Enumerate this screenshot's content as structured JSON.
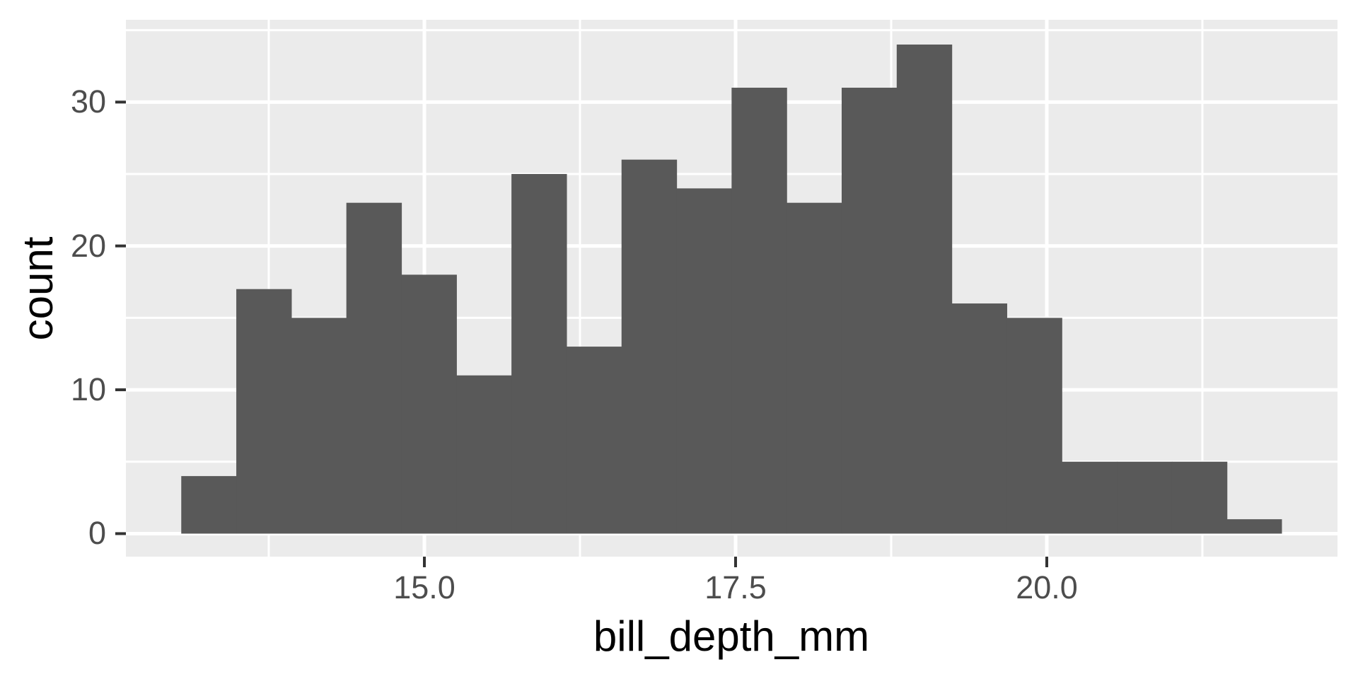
{
  "chart_data": {
    "type": "bar",
    "subtype": "histogram",
    "title": "",
    "xlabel": "bill_depth_mm",
    "ylabel": "count",
    "bin_start": 13.047,
    "bin_width": 0.4421,
    "counts": [
      4,
      17,
      15,
      23,
      18,
      11,
      25,
      13,
      26,
      24,
      31,
      23,
      31,
      34,
      16,
      15,
      5,
      5,
      5,
      1
    ],
    "total_n": 342,
    "x_ticks": [
      15.0,
      17.5,
      20.0
    ],
    "x_tick_labels": [
      "15.0",
      "17.5",
      "20.0"
    ],
    "x_minor_ticks": [
      13.75,
      16.25,
      18.75,
      21.25
    ],
    "y_ticks": [
      0,
      10,
      20,
      30
    ],
    "y_tick_labels": [
      "0",
      "10",
      "20",
      "30"
    ],
    "y_minor_ticks": [
      5,
      15,
      25,
      35
    ],
    "xlim": [
      12.6023,
      22.3352
    ],
    "ylim": [
      -1.6,
      35.72
    ],
    "grid": true,
    "legend_position": "none",
    "colors": {
      "bar_fill": "#595959",
      "panel_background": "#EBEBEB",
      "grid_major": "#FFFFFF",
      "grid_minor": "#FFFFFF",
      "tick_mark": "#333333",
      "tick_label": "#4D4D4D",
      "axis_title": "#000000",
      "figure_background": "#FFFFFF"
    }
  }
}
